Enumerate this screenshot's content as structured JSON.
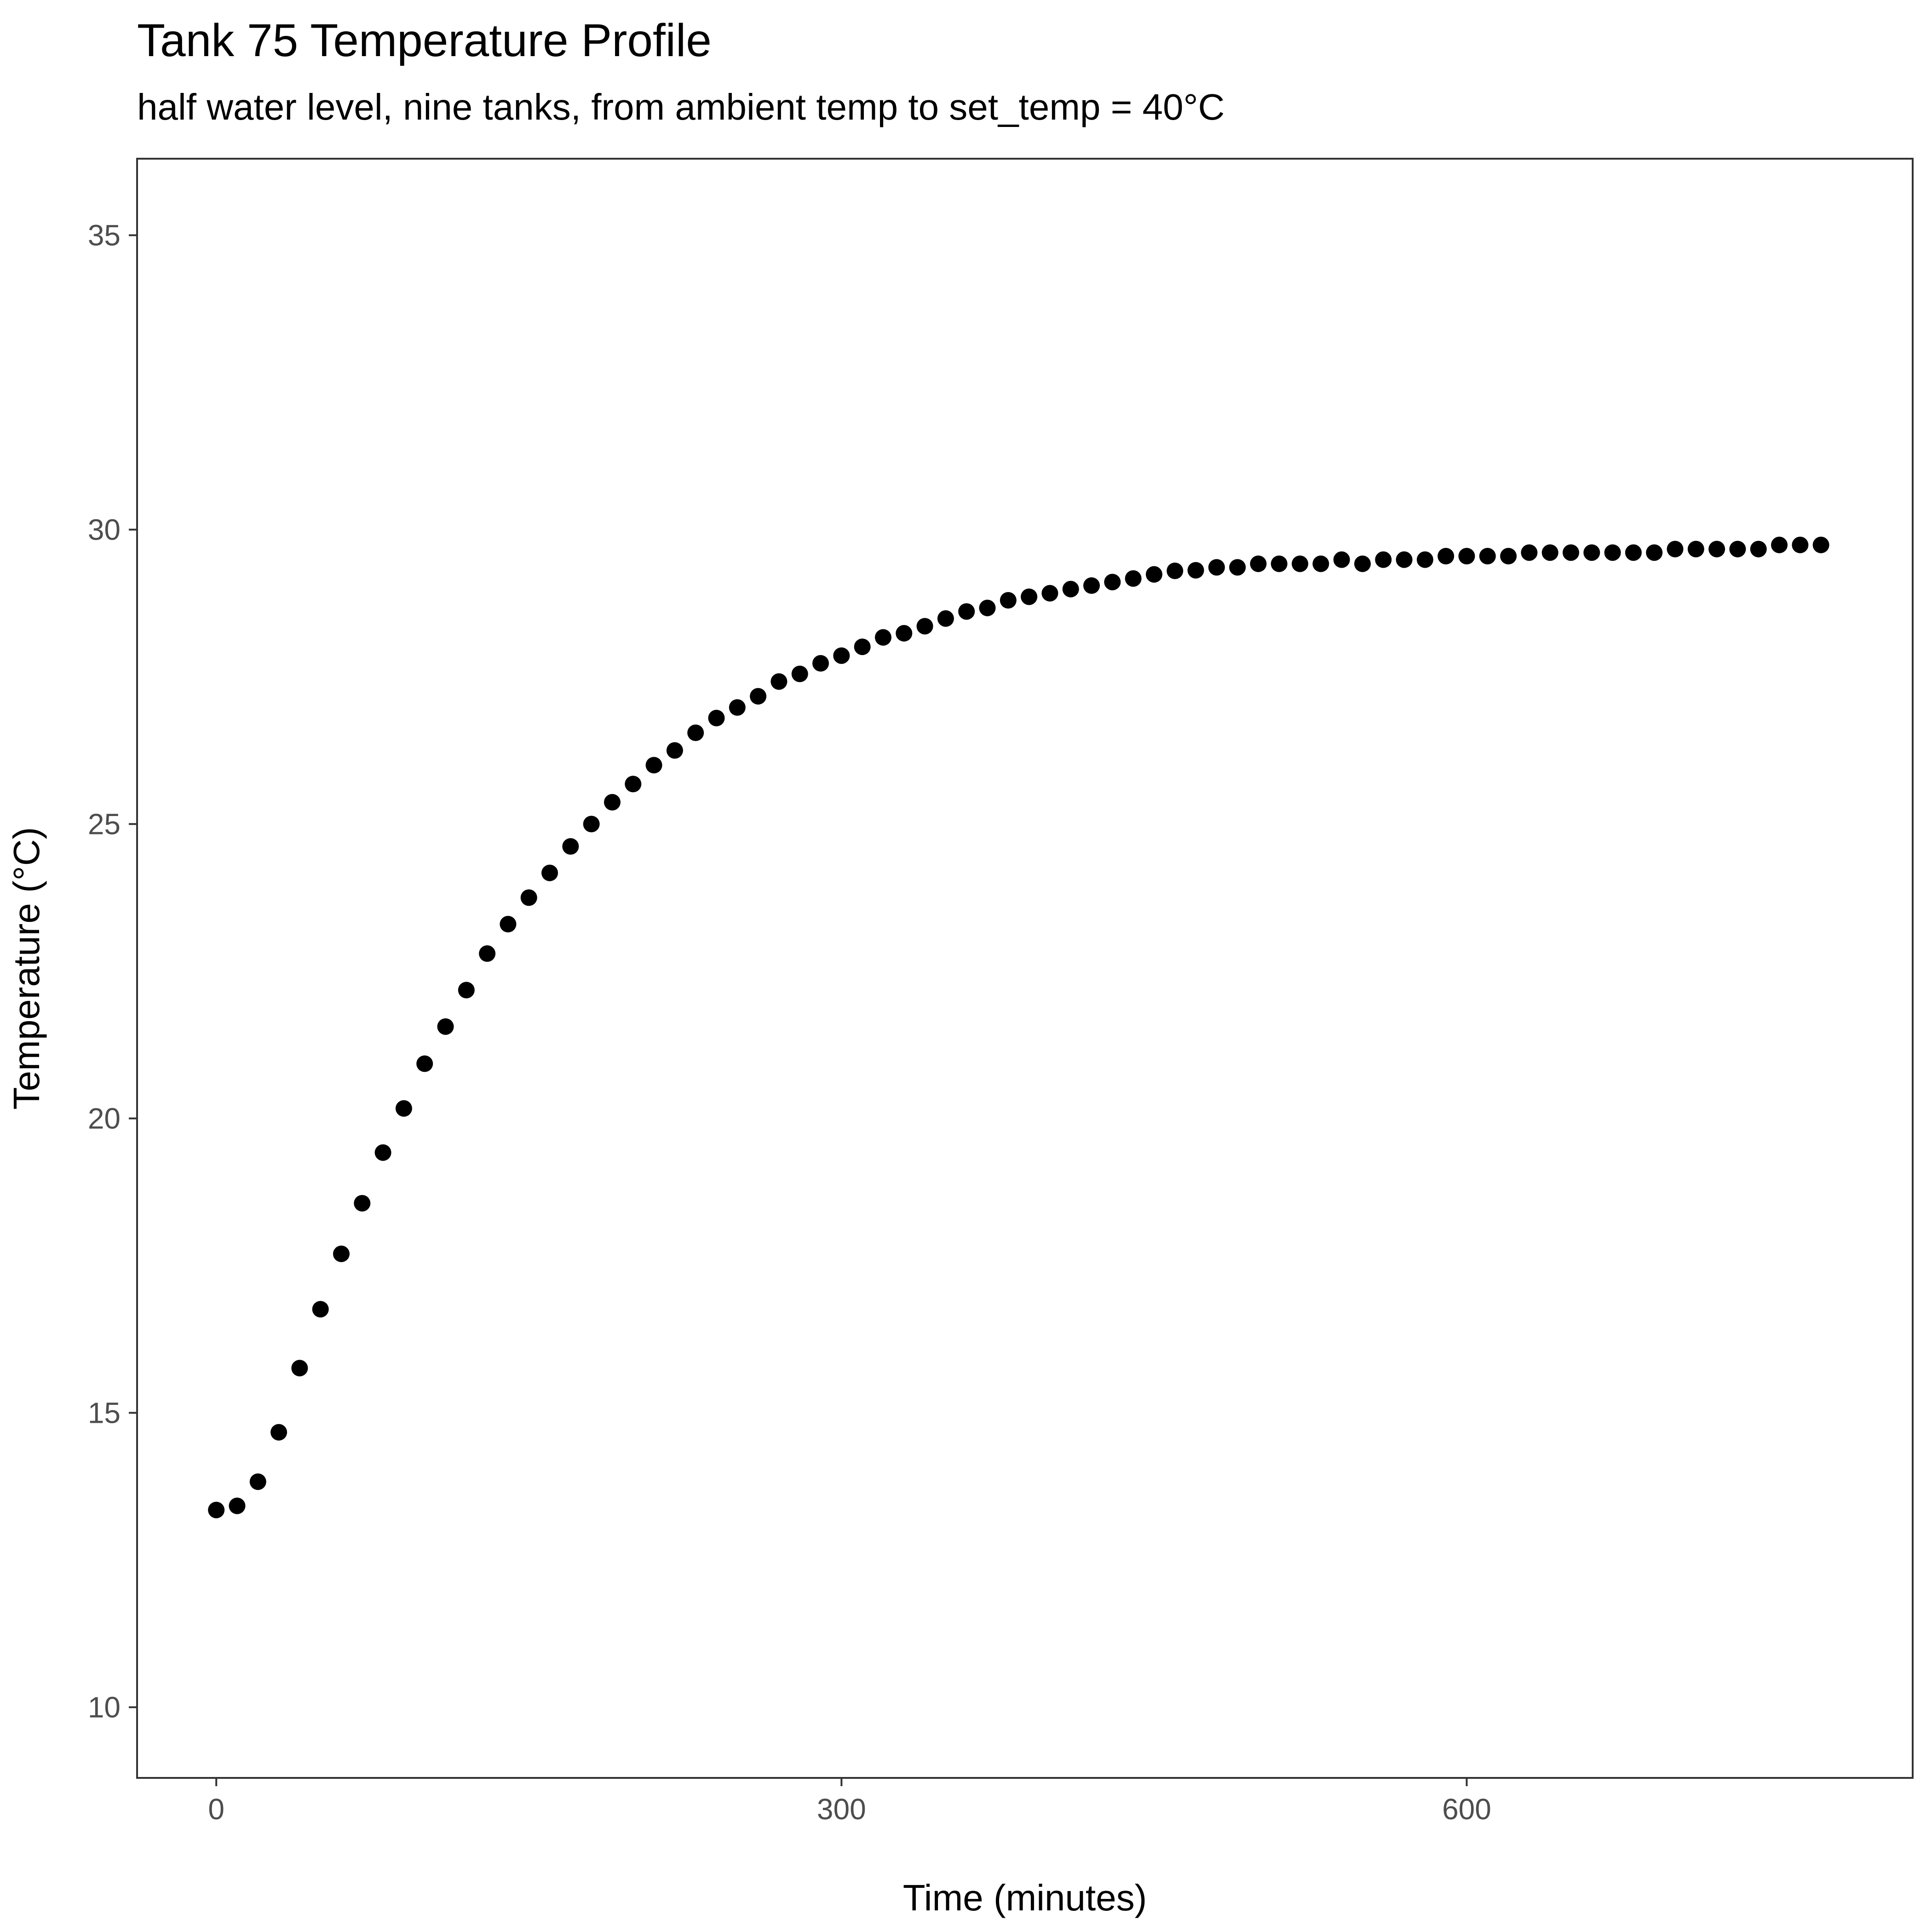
{
  "chart_data": {
    "type": "scatter",
    "title": "Tank 75 Temperature Profile",
    "subtitle": "half water level, nine tanks, from ambient temp to set_temp = 40°C",
    "xlabel": "Time (minutes)",
    "ylabel": "Temperature (°C)",
    "xlim": [
      -38,
      814
    ],
    "ylim": [
      8.8,
      36.3
    ],
    "xticks": [
      0,
      300,
      600
    ],
    "xtick_labels": [
      "0",
      "300",
      "600"
    ],
    "yticks": [
      10,
      15,
      20,
      25,
      30,
      35
    ],
    "ytick_labels": [
      "10",
      "15",
      "20",
      "25",
      "30",
      "35"
    ],
    "grid": false,
    "legend": "none",
    "point_color": "#000000",
    "series": [
      {
        "x": [
          0,
          10,
          20,
          30,
          40,
          50,
          60,
          70,
          80,
          90,
          100,
          110,
          120,
          130,
          140,
          150,
          160,
          170,
          180,
          190,
          200,
          210,
          220,
          230,
          240,
          250,
          260,
          270,
          280,
          290,
          300,
          310,
          320,
          330,
          340,
          350,
          360,
          370,
          380,
          390,
          400,
          410,
          420,
          430,
          440,
          450,
          460,
          470,
          480,
          490,
          500,
          510,
          520,
          530,
          540,
          550,
          560,
          570,
          580,
          590,
          600,
          610,
          620,
          630,
          640,
          650,
          660,
          670,
          680,
          690,
          700,
          710,
          720,
          730,
          740,
          750,
          760,
          770
        ],
        "y": [
          13.35,
          13.42,
          13.83,
          14.67,
          15.76,
          16.76,
          17.7,
          18.56,
          19.42,
          20.17,
          20.93,
          21.56,
          22.18,
          22.8,
          23.3,
          23.75,
          24.17,
          24.62,
          25.0,
          25.37,
          25.68,
          26.0,
          26.25,
          26.55,
          26.8,
          26.98,
          27.17,
          27.42,
          27.55,
          27.73,
          27.86,
          28.01,
          28.17,
          28.24,
          28.36,
          28.49,
          28.61,
          28.67,
          28.8,
          28.86,
          28.92,
          28.99,
          29.05,
          29.11,
          29.17,
          29.24,
          29.3,
          29.31,
          29.36,
          29.36,
          29.42,
          29.42,
          29.42,
          29.42,
          29.49,
          29.42,
          29.49,
          29.49,
          29.49,
          29.55,
          29.55,
          29.55,
          29.55,
          29.61,
          29.61,
          29.61,
          29.61,
          29.61,
          29.61,
          29.61,
          29.67,
          29.67,
          29.67,
          29.67,
          29.67,
          29.74,
          29.74,
          29.74
        ]
      }
    ]
  }
}
